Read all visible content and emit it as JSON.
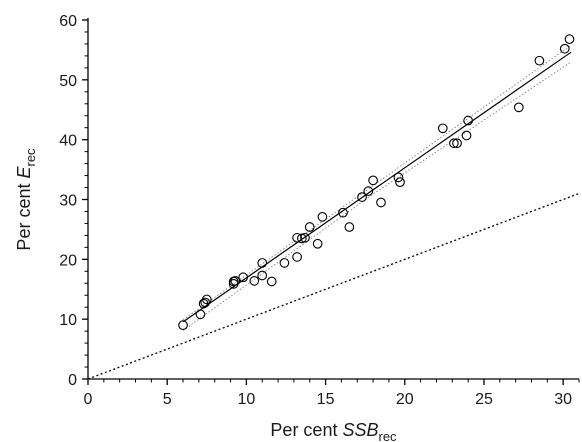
{
  "chart_data": {
    "type": "scatter",
    "title": "",
    "xlabel": {
      "prefix": "Per cent ",
      "italic": "SSB",
      "sub": "rec"
    },
    "ylabel": {
      "prefix": "Per cent ",
      "italic": "E",
      "sub": "rec"
    },
    "xlim": [
      0,
      31
    ],
    "ylim": [
      0,
      60
    ],
    "x_ticks": [
      0,
      5,
      10,
      15,
      20,
      25,
      30
    ],
    "y_ticks": [
      0,
      10,
      20,
      30,
      40,
      50,
      60
    ],
    "x_tick_labels": [
      "0",
      "5",
      "10",
      "15",
      "20",
      "25",
      "30"
    ],
    "y_tick_labels": [
      "0",
      "10",
      "20",
      "30",
      "40",
      "50",
      "60"
    ],
    "grid": false,
    "legend": "none",
    "marker": "open-circle",
    "points": [
      [
        6.0,
        9.0
      ],
      [
        7.1,
        10.8
      ],
      [
        7.3,
        12.6
      ],
      [
        7.4,
        12.8
      ],
      [
        7.5,
        13.3
      ],
      [
        9.2,
        15.9
      ],
      [
        9.2,
        16.3
      ],
      [
        9.3,
        16.4
      ],
      [
        9.8,
        17.0
      ],
      [
        10.5,
        16.4
      ],
      [
        11.0,
        17.3
      ],
      [
        11.0,
        19.4
      ],
      [
        11.6,
        16.3
      ],
      [
        12.4,
        19.4
      ],
      [
        13.2,
        20.4
      ],
      [
        13.2,
        23.6
      ],
      [
        13.5,
        23.5
      ],
      [
        13.7,
        23.6
      ],
      [
        14.0,
        25.4
      ],
      [
        14.5,
        22.6
      ],
      [
        14.8,
        27.1
      ],
      [
        16.1,
        27.8
      ],
      [
        16.5,
        25.4
      ],
      [
        17.3,
        30.4
      ],
      [
        17.7,
        31.4
      ],
      [
        18.0,
        33.2
      ],
      [
        18.5,
        29.5
      ],
      [
        19.6,
        33.7
      ],
      [
        19.7,
        32.9
      ],
      [
        22.4,
        41.9
      ],
      [
        23.1,
        39.4
      ],
      [
        23.3,
        39.4
      ],
      [
        23.9,
        40.7
      ],
      [
        24.0,
        43.2
      ],
      [
        27.2,
        45.4
      ],
      [
        28.5,
        53.2
      ],
      [
        30.1,
        55.2
      ],
      [
        30.4,
        56.8
      ]
    ],
    "fit_line": {
      "x_range": [
        6.0,
        30.5
      ],
      "slope": 1.84,
      "intercept": -1.5,
      "style": "solid",
      "color": "#000000"
    },
    "confidence_band": {
      "style": "dotted",
      "color": "#888888",
      "upper": [
        [
          6.0,
          9.9
        ],
        [
          18.0,
          32.3
        ],
        [
          30.5,
          55.8
        ]
      ],
      "lower": [
        [
          6.0,
          8.1
        ],
        [
          18.0,
          30.9
        ],
        [
          30.5,
          53.0
        ]
      ]
    },
    "reference_line": {
      "slope": 1.0,
      "intercept": 0,
      "x_range": [
        0,
        31
      ],
      "style": "dotted",
      "color": "#000000"
    }
  }
}
